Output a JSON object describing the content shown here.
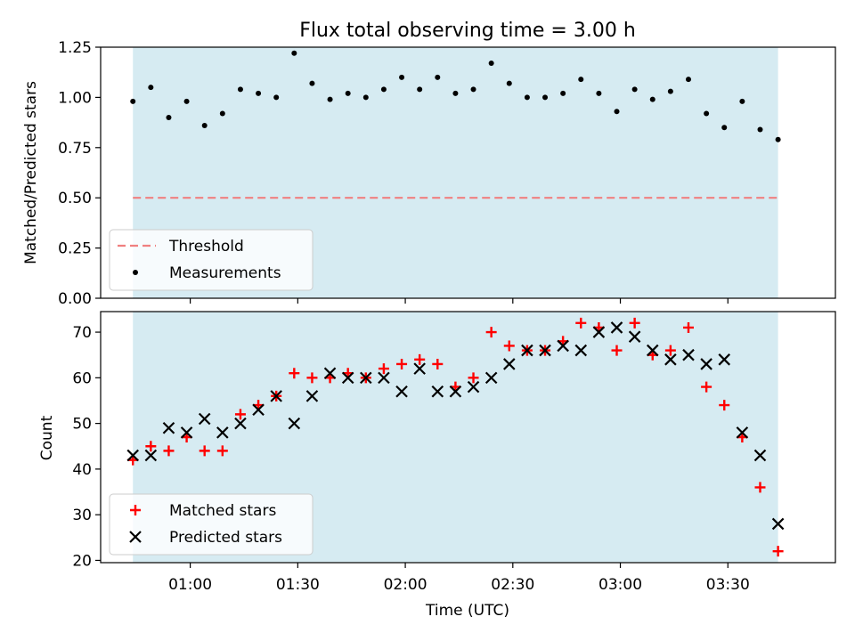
{
  "chart_data": [
    {
      "type": "scatter",
      "title": "Flux total observing time = 3.00 h",
      "xlabel": "",
      "ylabel": "Matched/Predicted stars",
      "ylim": [
        0,
        1.25
      ],
      "xlim_minutes": [
        35,
        240
      ],
      "yticks": [
        "0.00",
        "0.25",
        "0.50",
        "0.75",
        "1.00",
        "1.25"
      ],
      "shaded_span_minutes": [
        44,
        224
      ],
      "threshold": 0.5,
      "legend_position": "lower-left",
      "legend": [
        "Threshold",
        "Measurements"
      ],
      "series": [
        {
          "name": "Measurements",
          "x": [
            "00:44",
            "00:49",
            "00:54",
            "00:59",
            "01:04",
            "01:09",
            "01:14",
            "01:19",
            "01:24",
            "01:29",
            "01:34",
            "01:39",
            "01:44",
            "01:49",
            "01:54",
            "01:59",
            "02:04",
            "02:09",
            "02:14",
            "02:19",
            "02:24",
            "02:29",
            "02:34",
            "02:39",
            "02:44",
            "02:49",
            "02:54",
            "02:59",
            "03:04",
            "03:09",
            "03:14",
            "03:19",
            "03:24",
            "03:29",
            "03:34",
            "03:39",
            "03:44"
          ],
          "values": [
            0.98,
            1.05,
            0.9,
            0.98,
            0.86,
            0.92,
            1.04,
            1.02,
            1.0,
            1.22,
            1.07,
            0.99,
            1.02,
            1.0,
            1.04,
            1.1,
            1.04,
            1.1,
            1.02,
            1.04,
            1.17,
            1.07,
            1.0,
            1.0,
            1.02,
            1.09,
            1.02,
            0.93,
            1.04,
            0.99,
            1.03,
            1.09,
            0.92,
            0.85,
            0.98,
            0.84,
            0.79
          ]
        }
      ]
    },
    {
      "type": "scatter",
      "xlabel": "Time (UTC)",
      "ylabel": "Count",
      "ylim": [
        19.5,
        74.5
      ],
      "xlim_minutes": [
        35,
        240
      ],
      "yticks": [
        "20",
        "30",
        "40",
        "50",
        "60",
        "70"
      ],
      "xticks": [
        "01:00",
        "01:30",
        "02:00",
        "02:30",
        "03:00",
        "03:30"
      ],
      "shaded_span_minutes": [
        44,
        224
      ],
      "legend_position": "lower-left",
      "legend": [
        "Matched stars",
        "Predicted stars"
      ],
      "series": [
        {
          "name": "Matched stars",
          "x": [
            "00:44",
            "00:49",
            "00:54",
            "00:59",
            "01:04",
            "01:09",
            "01:14",
            "01:19",
            "01:24",
            "01:29",
            "01:34",
            "01:39",
            "01:44",
            "01:49",
            "01:54",
            "01:59",
            "02:04",
            "02:09",
            "02:14",
            "02:19",
            "02:24",
            "02:29",
            "02:34",
            "02:39",
            "02:44",
            "02:49",
            "02:54",
            "02:59",
            "03:04",
            "03:09",
            "03:14",
            "03:19",
            "03:24",
            "03:29",
            "03:34",
            "03:39",
            "03:44"
          ],
          "values": [
            42,
            45,
            44,
            47,
            44,
            44,
            52,
            54,
            56,
            61,
            60,
            60,
            61,
            60,
            62,
            63,
            64,
            63,
            58,
            60,
            70,
            67,
            66,
            66,
            68,
            72,
            71,
            66,
            72,
            65,
            66,
            71,
            58,
            54,
            47,
            36,
            22
          ]
        },
        {
          "name": "Predicted stars",
          "x": [
            "00:44",
            "00:49",
            "00:54",
            "00:59",
            "01:04",
            "01:09",
            "01:14",
            "01:19",
            "01:24",
            "01:29",
            "01:34",
            "01:39",
            "01:44",
            "01:49",
            "01:54",
            "01:59",
            "02:04",
            "02:09",
            "02:14",
            "02:19",
            "02:24",
            "02:29",
            "02:34",
            "02:39",
            "02:44",
            "02:49",
            "02:54",
            "02:59",
            "03:04",
            "03:09",
            "03:14",
            "03:19",
            "03:24",
            "03:29",
            "03:34",
            "03:39",
            "03:44"
          ],
          "values": [
            43,
            43,
            49,
            48,
            51,
            48,
            50,
            53,
            56,
            50,
            56,
            61,
            60,
            60,
            60,
            57,
            62,
            57,
            57,
            58,
            60,
            63,
            66,
            66,
            67,
            66,
            70,
            71,
            69,
            66,
            64,
            65,
            63,
            64,
            48,
            43,
            28
          ]
        }
      ]
    }
  ],
  "colors": {
    "shade": "#add8e6",
    "shade_opacity": 0.5,
    "threshold": "#f08080",
    "measurements": "#000000",
    "matched": "#ff0000",
    "predicted": "#000000"
  }
}
